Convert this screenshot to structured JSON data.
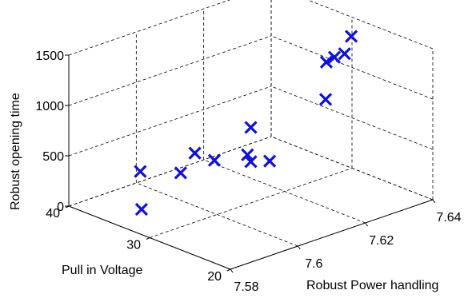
{
  "chart_data": {
    "type": "scatter3d",
    "title": "",
    "xlabel": "Robust Power handling",
    "ylabel": "Pull in Voltage",
    "zlabel": "Robust opening time",
    "xlim": [
      7.58,
      7.64
    ],
    "ylim": [
      20,
      40
    ],
    "zlim": [
      0,
      1500
    ],
    "xticks": [
      "7.58",
      "7.6",
      "7.62",
      "7.64"
    ],
    "yticks": [
      "20",
      "30",
      "40"
    ],
    "zticks": [
      "0",
      "500",
      "1000",
      "1500"
    ],
    "grid": true,
    "marker": "x",
    "marker_color": "#1010d8",
    "points": [
      {
        "x": 7.58,
        "y": 31.0,
        "z": 250
      },
      {
        "x": 7.6,
        "y": 39.5,
        "z": 130
      },
      {
        "x": 7.594,
        "y": 32.0,
        "z": 420
      },
      {
        "x": 7.603,
        "y": 34.0,
        "z": 450
      },
      {
        "x": 7.604,
        "y": 32.0,
        "z": 430
      },
      {
        "x": 7.609,
        "y": 30.0,
        "z": 490
      },
      {
        "x": 7.61,
        "y": 30.0,
        "z": 410
      },
      {
        "x": 7.612,
        "y": 28.5,
        "z": 440
      },
      {
        "x": 7.61,
        "y": 30.0,
        "z": 750
      },
      {
        "x": 7.625,
        "y": 27.0,
        "z": 950
      },
      {
        "x": 7.63,
        "y": 29.0,
        "z": 1200
      },
      {
        "x": 7.63,
        "y": 28.0,
        "z": 1280
      },
      {
        "x": 7.633,
        "y": 28.0,
        "z": 1280
      },
      {
        "x": 7.635,
        "y": 28.0,
        "z": 1430
      }
    ]
  }
}
